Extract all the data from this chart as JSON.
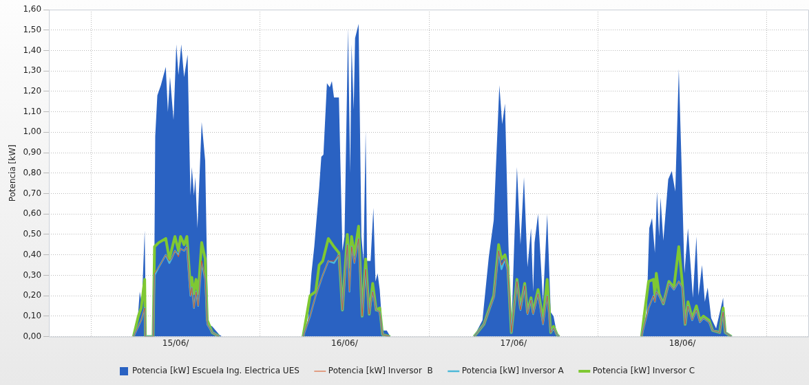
{
  "chart_data": {
    "type": "area",
    "ylabel": "Potencia [kW]",
    "legend": "bottom",
    "grid": true,
    "marker": "none",
    "line_style": "solid",
    "xlim": [
      "--06-14T18:00",
      "--06-19T06:00"
    ],
    "ylim": [
      0,
      1.6
    ],
    "xticks": [
      {
        "value": "--06-15T00:00",
        "label": null
      },
      {
        "value": "--06-15T12:00",
        "label": "15/06/"
      },
      {
        "value": "--06-16T00:00",
        "label": null
      },
      {
        "value": "--06-16T12:00",
        "label": "16/06/"
      },
      {
        "value": "--06-17T00:00",
        "label": null
      },
      {
        "value": "--06-17T12:00",
        "label": "17/06/"
      },
      {
        "value": "--06-18T00:00",
        "label": null
      },
      {
        "value": "--06-18T12:00",
        "label": "18/06/"
      },
      {
        "value": "--06-19T00:00",
        "label": null
      }
    ],
    "yticks": [
      {
        "value": 0,
        "label": "0,00"
      },
      {
        "value": 0.1,
        "label": "0,10"
      },
      {
        "value": 0.2,
        "label": "0,20"
      },
      {
        "value": 0.3,
        "label": "0,30"
      },
      {
        "value": 0.4,
        "label": "0,40"
      },
      {
        "value": 0.5,
        "label": "0,50"
      },
      {
        "value": 0.6,
        "label": "0,60"
      },
      {
        "value": 0.7,
        "label": "0,70"
      },
      {
        "value": 0.8,
        "label": "0,80"
      },
      {
        "value": 0.9,
        "label": "0,90"
      },
      {
        "value": 1.0,
        "label": "1,00"
      },
      {
        "value": 1.1,
        "label": "1,10"
      },
      {
        "value": 1.2,
        "label": "1,20"
      },
      {
        "value": 1.3,
        "label": "1,30"
      },
      {
        "value": 1.4,
        "label": "1,40"
      },
      {
        "value": 1.5,
        "label": "1,50"
      },
      {
        "value": 1.6,
        "label": "1,60"
      }
    ],
    "x": [
      "--06-15T06:00",
      "--06-15T06:42",
      "--06-15T07:06",
      "--06-15T07:36",
      "--06-15T07:42",
      "--06-15T08:48",
      "--06-15T09:00",
      "--06-15T09:36",
      "--06-15T10:36",
      "--06-15T11:06",
      "--06-15T11:24",
      "--06-15T11:54",
      "--06-15T12:24",
      "--06-15T12:42",
      "--06-15T13:12",
      "--06-15T13:36",
      "--06-15T14:06",
      "--06-15T14:18",
      "--06-15T14:36",
      "--06-15T14:54",
      "--06-15T15:12",
      "--06-15T15:42",
      "--06-15T16:12",
      "--06-15T16:30",
      "--06-15T17:12",
      "--06-15T18:12",
      "--06-16T00:00",
      "--06-16T06:06",
      "--06-16T07:06",
      "--06-16T07:54",
      "--06-16T08:24",
      "--06-16T08:54",
      "--06-16T09:42",
      "--06-16T10:30",
      "--06-16T11:12",
      "--06-16T11:42",
      "--06-16T12:24",
      "--06-16T12:42",
      "--06-16T13:00",
      "--06-16T13:24",
      "--06-16T14:00",
      "--06-16T14:30",
      "--06-16T15:00",
      "--06-16T15:30",
      "--06-16T16:00",
      "--06-16T16:30",
      "--06-16T17:00",
      "--06-16T17:24",
      "--06-16T18:30",
      "--06-17T00:00",
      "--06-17T06:24",
      "--06-17T07:48",
      "--06-17T09:12",
      "--06-17T09:54",
      "--06-17T10:18",
      "--06-17T10:48",
      "--06-17T11:12",
      "--06-17T11:42",
      "--06-17T12:30",
      "--06-17T13:00",
      "--06-17T13:36",
      "--06-17T14:00",
      "--06-17T14:30",
      "--06-17T14:48",
      "--06-17T15:30",
      "--06-17T16:12",
      "--06-17T16:48",
      "--06-17T17:18",
      "--06-17T17:42",
      "--06-17T18:12",
      "--06-17T18:30",
      "--06-18T00:00",
      "--06-18T06:12",
      "--06-18T07:12",
      "--06-18T07:54",
      "--06-18T08:06",
      "--06-18T08:18",
      "--06-18T08:42",
      "--06-18T09:18",
      "--06-18T10:06",
      "--06-18T10:48",
      "--06-18T11:30",
      "--06-18T12:00",
      "--06-18T12:24",
      "--06-18T12:48",
      "--06-18T13:24",
      "--06-18T14:00",
      "--06-18T14:30",
      "--06-18T15:00",
      "--06-18T15:48",
      "--06-18T16:18",
      "--06-18T17:18",
      "--06-18T17:48",
      "--06-18T18:06",
      "--06-18T19:00"
    ],
    "series": [
      {
        "name": "Potencia [kW] Escuela Ing. Electrica UES",
        "color": "#2a62c2",
        "x": [
          "--06-15T06:00",
          "--06-15T06:36",
          "--06-15T06:54",
          "--06-15T07:12",
          "--06-15T07:36",
          "--06-15T07:48",
          "--06-15T08:48",
          "--06-15T08:54",
          "--06-15T09:06",
          "--06-15T09:24",
          "--06-15T09:54",
          "--06-15T10:36",
          "--06-15T10:54",
          "--06-15T11:12",
          "--06-15T11:42",
          "--06-15T12:06",
          "--06-15T12:24",
          "--06-15T12:48",
          "--06-15T13:12",
          "--06-15T13:42",
          "--06-15T14:06",
          "--06-15T14:18",
          "--06-15T14:36",
          "--06-15T14:48",
          "--06-15T15:06",
          "--06-15T15:42",
          "--06-15T16:12",
          "--06-15T16:36",
          "--06-15T17:12",
          "--06-15T18:12",
          "--06-15T18:36",
          "--06-16T00:00",
          "--06-16T06:06",
          "--06-16T06:48",
          "--06-16T07:18",
          "--06-16T07:42",
          "--06-16T08:24",
          "--06-16T08:42",
          "--06-16T09:00",
          "--06-16T09:30",
          "--06-16T09:54",
          "--06-16T10:12",
          "--06-16T10:30",
          "--06-16T11:12",
          "--06-16T11:42",
          "--06-16T12:00",
          "--06-16T12:30",
          "--06-16T12:48",
          "--06-16T13:00",
          "--06-16T13:18",
          "--06-16T13:30",
          "--06-16T14:00",
          "--06-16T14:24",
          "--06-16T14:42",
          "--06-16T15:00",
          "--06-16T15:12",
          "--06-16T15:42",
          "--06-16T16:06",
          "--06-16T16:24",
          "--06-16T16:42",
          "--06-16T17:00",
          "--06-16T17:24",
          "--06-16T18:00",
          "--06-16T18:30",
          "--06-17T00:00",
          "--06-17T06:24",
          "--06-17T07:36",
          "--06-17T08:30",
          "--06-17T09:12",
          "--06-17T10:00",
          "--06-17T10:24",
          "--06-17T10:48",
          "--06-17T11:18",
          "--06-17T11:42",
          "--06-17T12:06",
          "--06-17T12:30",
          "--06-17T13:00",
          "--06-17T13:30",
          "--06-17T14:00",
          "--06-17T14:30",
          "--06-17T14:48",
          "--06-17T15:00",
          "--06-17T15:30",
          "--06-17T16:12",
          "--06-17T16:48",
          "--06-17T17:18",
          "--06-17T17:42",
          "--06-17T18:12",
          "--06-17T18:30",
          "--06-18T00:00",
          "--06-18T06:12",
          "--06-18T06:54",
          "--06-18T07:18",
          "--06-18T07:42",
          "--06-18T08:06",
          "--06-18T08:24",
          "--06-18T08:42",
          "--06-18T08:54",
          "--06-18T09:18",
          "--06-18T10:00",
          "--06-18T10:30",
          "--06-18T11:00",
          "--06-18T11:30",
          "--06-18T11:54",
          "--06-18T12:18",
          "--06-18T12:48",
          "--06-18T13:30",
          "--06-18T14:00",
          "--06-18T14:18",
          "--06-18T14:48",
          "--06-18T15:12",
          "--06-18T15:36",
          "--06-18T16:06",
          "--06-18T16:48",
          "--06-18T17:48",
          "--06-18T18:00",
          "--06-18T19:00"
        ],
        "values": [
          0,
          0.08,
          0.22,
          0.16,
          0.52,
          0,
          0,
          0,
          0.98,
          1.18,
          1.23,
          1.32,
          1.1,
          1.27,
          1.06,
          1.43,
          1.28,
          1.43,
          1.27,
          1.38,
          0.69,
          0.83,
          0.69,
          0.78,
          0.53,
          1.05,
          0.86,
          0.06,
          0.05,
          0.01,
          0,
          null,
          0,
          0.08,
          0.31,
          0.44,
          0.73,
          0.88,
          0.89,
          1.24,
          1.22,
          1.25,
          1.17,
          1.17,
          0.42,
          0.49,
          1.51,
          0.8,
          1.43,
          1.11,
          1.46,
          1.53,
          0.49,
          0.37,
          1.01,
          0.37,
          0.37,
          0.63,
          0.27,
          0.31,
          0.23,
          0.03,
          0.03,
          0,
          null,
          0,
          0.08,
          0.39,
          0.57,
          1.23,
          1.04,
          1.14,
          0.44,
          0.02,
          0.44,
          0.83,
          0.45,
          0.78,
          0.34,
          0.53,
          0.22,
          0.46,
          0.6,
          0.17,
          0.6,
          0.12,
          0.1,
          0.01,
          0,
          null,
          0,
          0.09,
          0.53,
          0.58,
          0.41,
          0.71,
          0.49,
          0.68,
          0.47,
          0.77,
          0.81,
          0.71,
          1.31,
          0.83,
          0.31,
          0.53,
          0.19,
          0.49,
          0.2,
          0.35,
          0.17,
          0.24,
          0.09,
          0.04,
          0.19,
          0.03,
          0
        ]
      },
      {
        "name": "Potencia [kW] Inversor  B",
        "type": "line",
        "color": "#d9531e",
        "values": [
          0,
          0.05,
          0.08,
          0.14,
          0,
          0,
          0.31,
          0.34,
          0.4,
          0.37,
          0.38,
          0.42,
          0.39,
          0.43,
          0.42,
          0.44,
          0.2,
          0.24,
          0.14,
          0.22,
          0.15,
          0.37,
          0.28,
          0.06,
          0.02,
          0,
          null,
          0,
          0.1,
          0.2,
          0.25,
          0.3,
          0.37,
          0.37,
          0.4,
          0.13,
          0.45,
          0.22,
          0.44,
          0.36,
          0.48,
          0.1,
          0.33,
          0.11,
          0.22,
          0.13,
          0.12,
          0.01,
          0,
          null,
          0,
          0.06,
          0.19,
          0.42,
          0.35,
          0.38,
          0.32,
          0.02,
          0.27,
          0.13,
          0.25,
          0.11,
          0.18,
          0.11,
          0.21,
          0.06,
          0.2,
          0.02,
          0.04,
          0.01,
          0,
          null,
          0,
          0.14,
          0.2,
          0.17,
          0.22,
          0.2,
          0.16,
          0.26,
          0.23,
          0.27,
          0.24,
          0.06,
          0.15,
          0.08,
          0.13,
          0.07,
          0.09,
          0.07,
          0.03,
          0.02,
          0.12,
          0.02,
          0
        ]
      },
      {
        "name": "Potencia [kW] Inversor A",
        "type": "line",
        "color": "#4cb8d8",
        "values": [
          0,
          0.05,
          0.08,
          0.14,
          0,
          0,
          0.3,
          0.34,
          0.4,
          0.36,
          0.38,
          0.42,
          0.4,
          0.43,
          0.42,
          0.44,
          0.2,
          0.24,
          0.14,
          0.22,
          0.15,
          0.36,
          0.28,
          0.06,
          0.02,
          0,
          null,
          0,
          0.1,
          0.2,
          0.25,
          0.3,
          0.37,
          0.36,
          0.4,
          0.13,
          0.45,
          0.22,
          0.44,
          0.36,
          0.48,
          0.1,
          0.33,
          0.11,
          0.22,
          0.13,
          0.12,
          0.01,
          0,
          null,
          0,
          0.06,
          0.19,
          0.42,
          0.33,
          0.38,
          0.32,
          0.02,
          0.27,
          0.13,
          0.25,
          0.11,
          0.18,
          0.11,
          0.21,
          0.06,
          0.2,
          0.02,
          0.04,
          0.01,
          0,
          null,
          0,
          0.14,
          0.2,
          0.17,
          0.22,
          0.2,
          0.16,
          0.26,
          0.23,
          0.27,
          0.24,
          0.06,
          0.15,
          0.08,
          0.13,
          0.07,
          0.09,
          0.07,
          0.03,
          0.02,
          0.12,
          0.02,
          0
        ]
      },
      {
        "name": "Potencia [kW] Inversor C",
        "type": "line",
        "color": "#7fc832",
        "values": [
          0,
          0.1,
          0.14,
          0.28,
          0,
          0,
          0.44,
          0.46,
          0.48,
          0.38,
          0.42,
          0.49,
          0.42,
          0.49,
          0.45,
          0.49,
          0.24,
          0.29,
          0.21,
          0.28,
          0.21,
          0.46,
          0.38,
          0.08,
          0.02,
          0,
          null,
          0,
          0.2,
          0.22,
          0.35,
          0.37,
          0.48,
          0.44,
          0.41,
          0.13,
          0.5,
          0.34,
          0.49,
          0.4,
          0.54,
          0.1,
          0.38,
          0.11,
          0.26,
          0.13,
          0.14,
          0.01,
          0,
          null,
          0,
          0.06,
          0.2,
          0.45,
          0.38,
          0.4,
          0.34,
          0.02,
          0.28,
          0.14,
          0.26,
          0.12,
          0.19,
          0.12,
          0.23,
          0.08,
          0.28,
          0.02,
          0.05,
          0.01,
          0,
          null,
          0,
          0.27,
          0.28,
          0.2,
          0.31,
          0.21,
          0.16,
          0.27,
          0.24,
          0.44,
          0.26,
          0.06,
          0.17,
          0.09,
          0.15,
          0.08,
          0.1,
          0.08,
          0.03,
          0.02,
          0.14,
          0.02,
          0
        ]
      }
    ]
  }
}
